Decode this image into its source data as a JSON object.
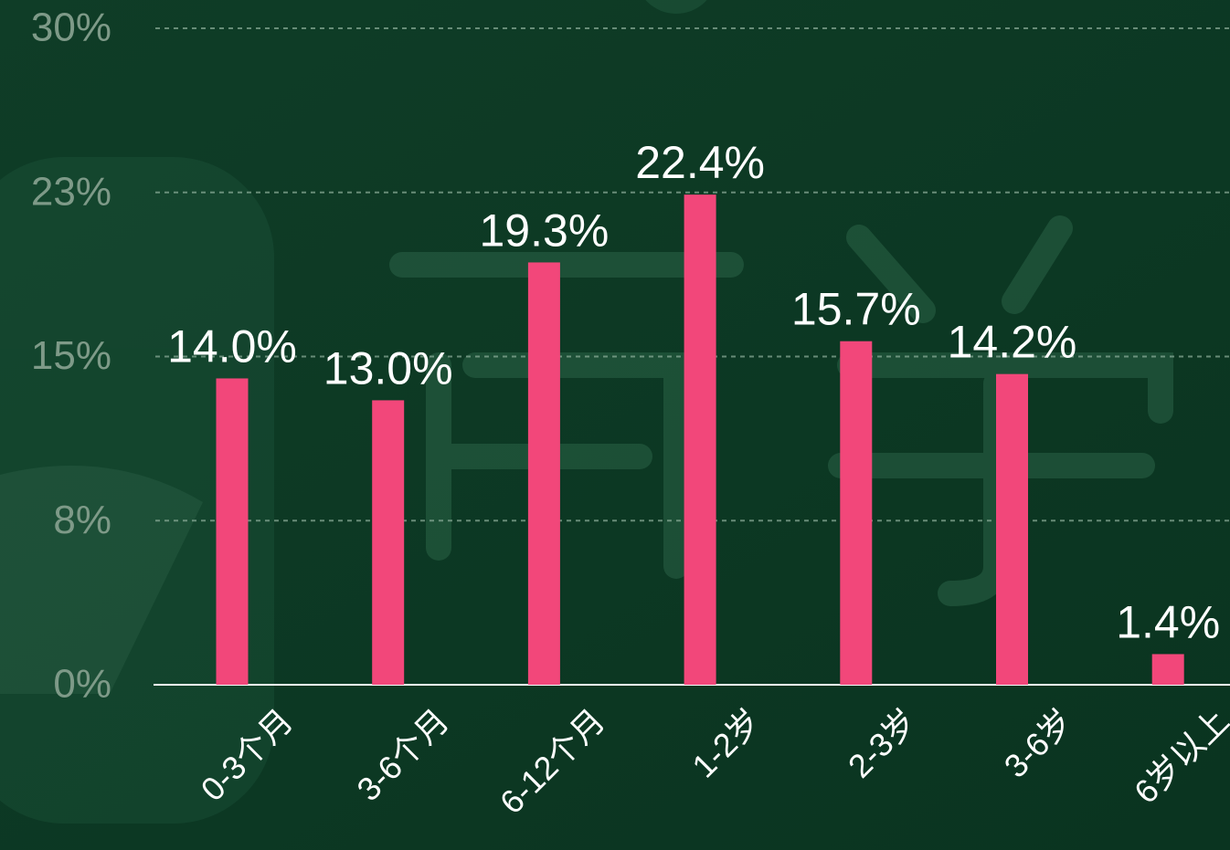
{
  "chart_data": {
    "type": "bar",
    "categories": [
      "0-3个月",
      "3-6个月",
      "6-12个月",
      "1-2岁",
      "2-3岁",
      "3-6岁",
      "6岁以上"
    ],
    "values": [
      14.0,
      13.0,
      19.3,
      22.4,
      15.7,
      14.2,
      1.4
    ],
    "value_labels": [
      "14.0%",
      "13.0%",
      "19.3%",
      "22.4%",
      "15.7%",
      "14.2%",
      "1.4%"
    ],
    "color": "#f2477a",
    "ylim": [
      0,
      30
    ],
    "yticks": [
      {
        "value": 0,
        "label": "0%"
      },
      {
        "value": 7.5,
        "label": "8%"
      },
      {
        "value": 15,
        "label": "15%"
      },
      {
        "value": 22.5,
        "label": "23%"
      },
      {
        "value": 30,
        "label": "30%"
      }
    ],
    "grid": true
  }
}
